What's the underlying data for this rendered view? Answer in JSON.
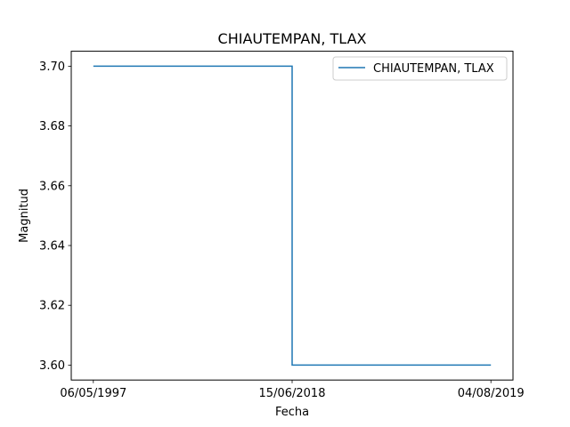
{
  "chart_data": {
    "type": "line",
    "drawstyle": "steps-post",
    "title": "CHIAUTEMPAN, TLAX",
    "xlabel": "Fecha",
    "ylabel": "Magnitud",
    "categories": [
      "06/05/1997",
      "15/06/2018",
      "04/08/2019"
    ],
    "series": [
      {
        "name": "CHIAUTEMPAN, TLAX",
        "values": [
          3.7,
          3.6,
          3.6
        ],
        "color": "#1f77b4"
      }
    ],
    "ylim": [
      3.595,
      3.705
    ],
    "yticks": [
      3.6,
      3.62,
      3.64,
      3.66,
      3.68,
      3.7
    ],
    "ytick_labels": [
      "3.60",
      "3.62",
      "3.64",
      "3.66",
      "3.68",
      "3.70"
    ],
    "legend_position": "top-right",
    "grid": false
  }
}
